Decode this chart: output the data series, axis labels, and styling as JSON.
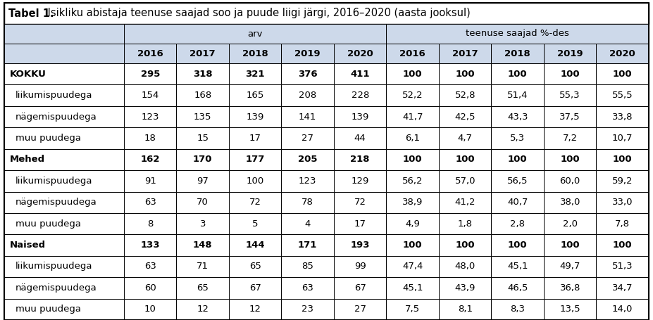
{
  "title_bold": "Tabel 1.",
  "title_rest": " Isikliku abistaja teenuse saajad soo ja puude liigi järgi, 2016–2020 (aasta jooksul)",
  "col_header_1": "arv",
  "col_header_2": "teenuse saajad %-des",
  "years": [
    "2016",
    "2017",
    "2018",
    "2019",
    "2020"
  ],
  "rows": [
    {
      "label": "KOKKU",
      "bold": true,
      "indent": false,
      "arv": [
        "295",
        "318",
        "321",
        "376",
        "411"
      ],
      "pct": [
        "100",
        "100",
        "100",
        "100",
        "100"
      ]
    },
    {
      "label": "liikumispuudega",
      "bold": false,
      "indent": true,
      "arv": [
        "154",
        "168",
        "165",
        "208",
        "228"
      ],
      "pct": [
        "52,2",
        "52,8",
        "51,4",
        "55,3",
        "55,5"
      ]
    },
    {
      "label": "nägemispuudega",
      "bold": false,
      "indent": true,
      "arv": [
        "123",
        "135",
        "139",
        "141",
        "139"
      ],
      "pct": [
        "41,7",
        "42,5",
        "43,3",
        "37,5",
        "33,8"
      ]
    },
    {
      "label": "muu puudega",
      "bold": false,
      "indent": true,
      "arv": [
        "18",
        "15",
        "17",
        "27",
        "44"
      ],
      "pct": [
        "6,1",
        "4,7",
        "5,3",
        "7,2",
        "10,7"
      ]
    },
    {
      "label": "Mehed",
      "bold": true,
      "indent": false,
      "arv": [
        "162",
        "170",
        "177",
        "205",
        "218"
      ],
      "pct": [
        "100",
        "100",
        "100",
        "100",
        "100"
      ]
    },
    {
      "label": "liikumispuudega",
      "bold": false,
      "indent": true,
      "arv": [
        "91",
        "97",
        "100",
        "123",
        "129"
      ],
      "pct": [
        "56,2",
        "57,0",
        "56,5",
        "60,0",
        "59,2"
      ]
    },
    {
      "label": "nägemispuudega",
      "bold": false,
      "indent": true,
      "arv": [
        "63",
        "70",
        "72",
        "78",
        "72"
      ],
      "pct": [
        "38,9",
        "41,2",
        "40,7",
        "38,0",
        "33,0"
      ]
    },
    {
      "label": "muu puudega",
      "bold": false,
      "indent": true,
      "arv": [
        "8",
        "3",
        "5",
        "4",
        "17"
      ],
      "pct": [
        "4,9",
        "1,8",
        "2,8",
        "2,0",
        "7,8"
      ]
    },
    {
      "label": "Naised",
      "bold": true,
      "indent": false,
      "arv": [
        "133",
        "148",
        "144",
        "171",
        "193"
      ],
      "pct": [
        "100",
        "100",
        "100",
        "100",
        "100"
      ]
    },
    {
      "label": "liikumispuudega",
      "bold": false,
      "indent": true,
      "arv": [
        "63",
        "71",
        "65",
        "85",
        "99"
      ],
      "pct": [
        "47,4",
        "48,0",
        "45,1",
        "49,7",
        "51,3"
      ]
    },
    {
      "label": "nägemispuudega",
      "bold": false,
      "indent": true,
      "arv": [
        "60",
        "65",
        "67",
        "63",
        "67"
      ],
      "pct": [
        "45,1",
        "43,9",
        "46,5",
        "36,8",
        "34,7"
      ]
    },
    {
      "label": "muu puudega",
      "bold": false,
      "indent": true,
      "arv": [
        "10",
        "12",
        "12",
        "23",
        "27"
      ],
      "pct": [
        "7,5",
        "8,1",
        "8,3",
        "13,5",
        "14,0"
      ]
    }
  ],
  "header_bg": "#cdd9ea",
  "white_bg": "#ffffff",
  "border_color": "#000000",
  "title_fontsize": 10.5,
  "cell_fontsize": 9.5,
  "header_fontsize": 9.5
}
